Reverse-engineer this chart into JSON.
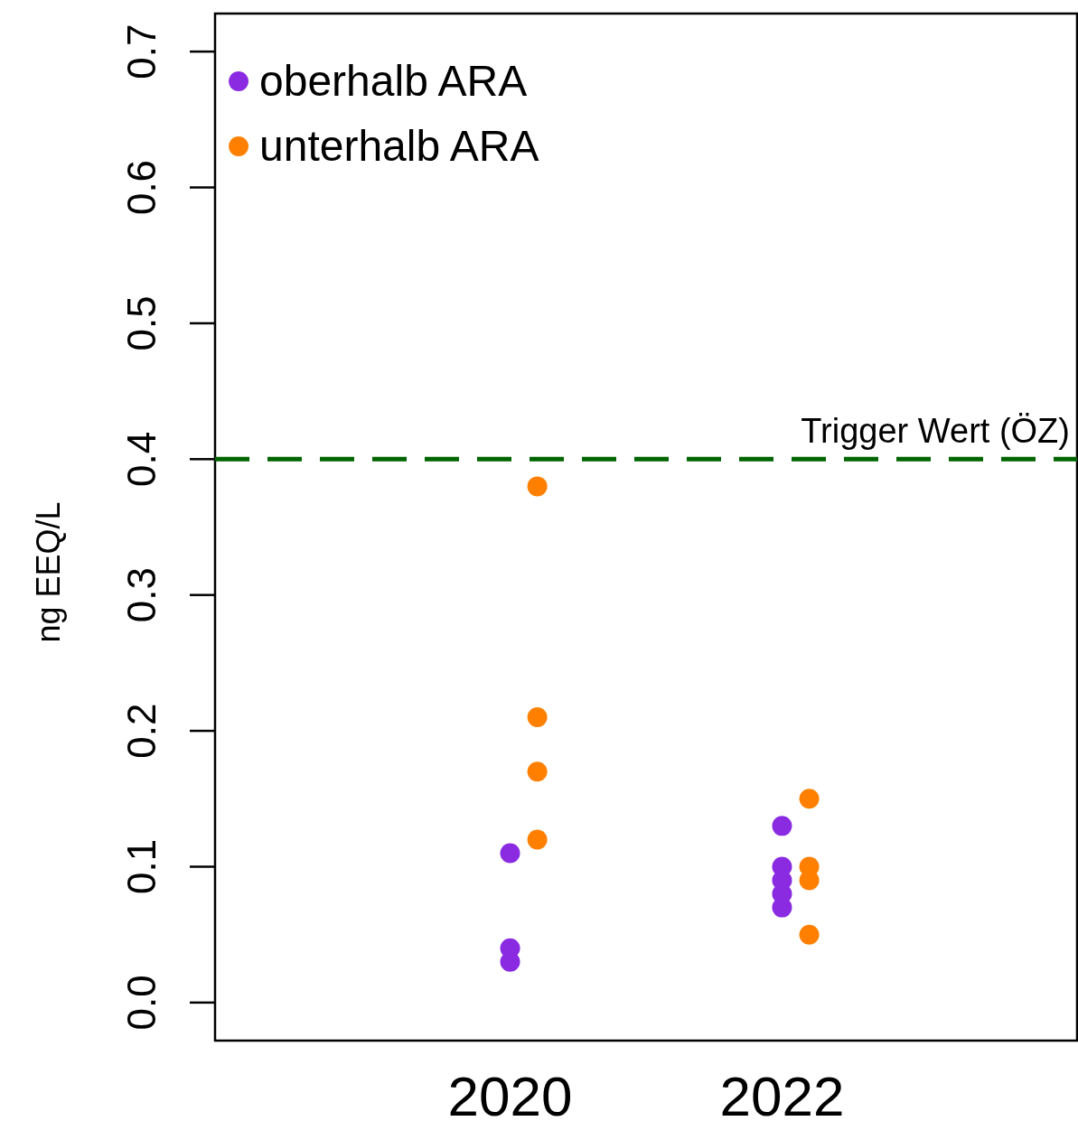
{
  "chart_data": {
    "type": "scatter",
    "ylabel": "ng EEQ/L",
    "xlim": [
      2017.83,
      2024.17
    ],
    "xticks": [
      2020,
      2022
    ],
    "ylim": [
      -0.028,
      0.728
    ],
    "yticks": [
      {
        "value": 0,
        "label": "0.0"
      },
      0.1,
      0.2,
      0.3,
      0.4,
      0.5,
      0.6,
      0.7
    ],
    "grid": false,
    "legend": "top left",
    "marker": "circle",
    "series": [
      {
        "name": "oberhalb ARA",
        "color": "#8a2be2",
        "x": [
          2020,
          2020,
          2020,
          2022,
          2022,
          2022,
          2022,
          2022
        ],
        "values": [
          0.11,
          0.04,
          0.03,
          0.13,
          0.1,
          0.09,
          0.08,
          0.07
        ]
      },
      {
        "name": "unterhalb ARA",
        "color": "#ff8000",
        "x": [
          2020.2,
          2020.2,
          2020.2,
          2020.2,
          2022.2,
          2022.2,
          2022.2,
          2022.2
        ],
        "values": [
          0.38,
          0.21,
          0.17,
          0.12,
          0.15,
          0.1,
          0.09,
          0.05
        ]
      }
    ],
    "ref_lines": [
      {
        "axis": "y",
        "value": 0.4,
        "label": "Trigger Wert (ÖZ)",
        "color": "#006400",
        "line_style": "dashed"
      }
    ]
  }
}
